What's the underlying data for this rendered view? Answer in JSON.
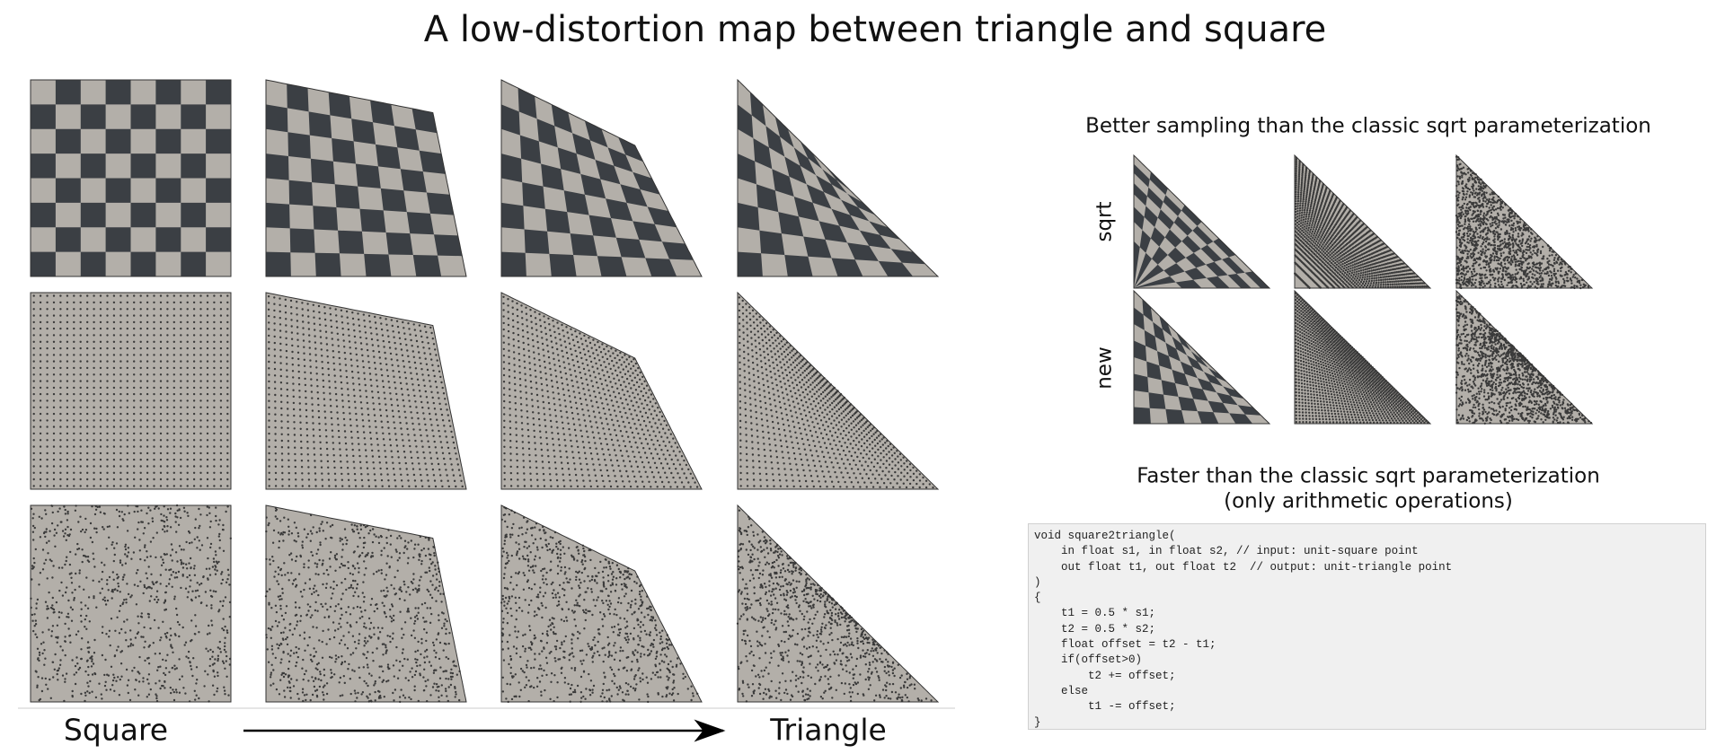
{
  "title": "A low-distortion map between triangle and square",
  "left_panel": {
    "start_label": "Square",
    "end_label": "Triangle"
  },
  "right_panel": {
    "sampling_heading": "Better sampling than the classic sqrt parameterization",
    "row_labels": [
      "sqrt",
      "new"
    ],
    "speed_heading": [
      "Faster than the classic sqrt parameterization",
      "(only arithmetic operations)"
    ],
    "code": [
      "void square2triangle(",
      "    in float s1, in float s2, // input: unit-square point",
      "    out float t1, out float t2  // output: unit-triangle point",
      ")",
      "{",
      "    t1 = 0.5 * s1;",
      "    t2 = 0.5 * s2;",
      "    float offset = t2 - t1;",
      "    if(offset>0)",
      "        t2 += offset;",
      "    else",
      "        t1 -= offset;",
      "}"
    ]
  }
}
